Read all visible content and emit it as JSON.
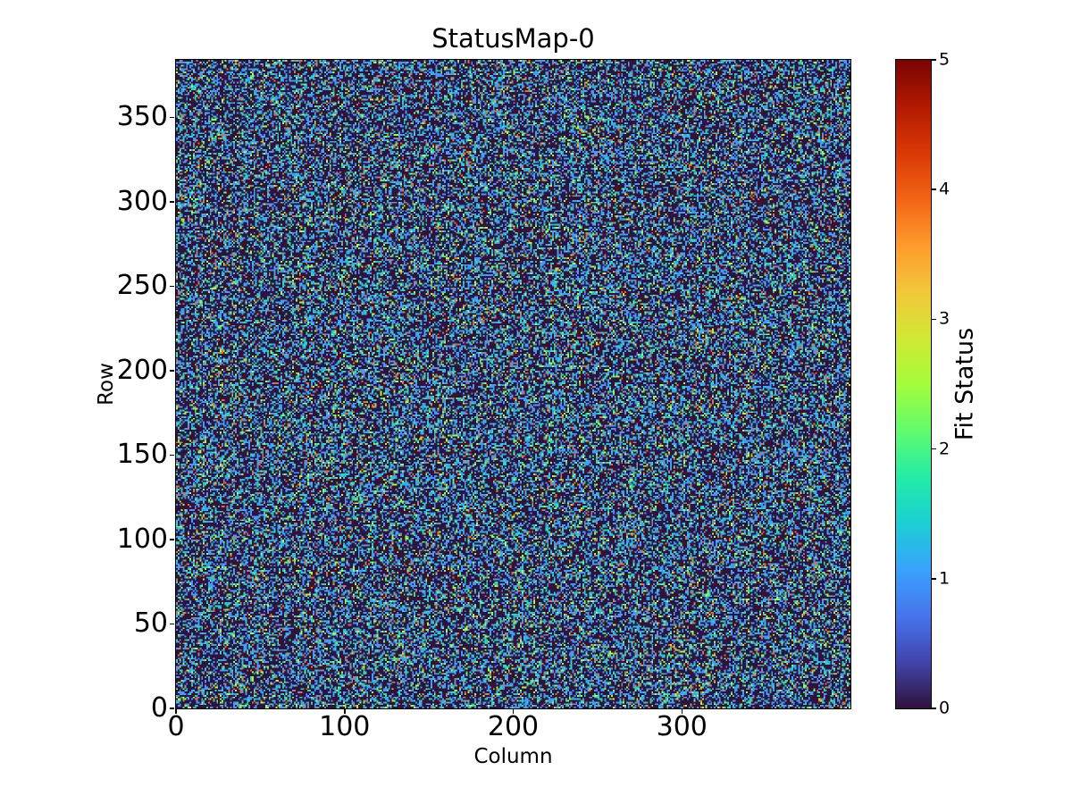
{
  "colors": {
    "background": "#ffffff",
    "text": "#000000",
    "spine": "#000000"
  },
  "chart_data": {
    "type": "heatmap",
    "title": "StatusMap-0",
    "xlabel": "Column",
    "ylabel": "Row",
    "x_ticks": [
      0,
      100,
      200,
      300
    ],
    "y_ticks": [
      0,
      50,
      100,
      150,
      200,
      250,
      300,
      350
    ],
    "xlim": [
      0,
      400
    ],
    "ylim": [
      0,
      384
    ],
    "grid": false,
    "cols": 400,
    "rows": 384,
    "colorbar": {
      "label": "Fit Status",
      "ticks": [
        0,
        1,
        2,
        3,
        4,
        5
      ],
      "vmin": 0,
      "vmax": 5,
      "colormap": "turbo",
      "position": "right",
      "gradient_stops": [
        "#30123b",
        "#4145ab",
        "#4675ed",
        "#39a2fc",
        "#1bcfd4",
        "#24eca6",
        "#61fc6c",
        "#a4fc3b",
        "#d1e834",
        "#f3c63a",
        "#fe9b2d",
        "#f36315",
        "#d93806",
        "#b11901",
        "#7a0403"
      ]
    },
    "cell_colors": {
      "0": "#30123b",
      "1": "#3e9cfe",
      "2": "#1ae4b6",
      "3": "#a4fc3c",
      "4": "#f76915",
      "5": "#7a0403"
    },
    "value_distribution": {
      "values": [
        0,
        1,
        2,
        3,
        4,
        5
      ],
      "probabilities": [
        0.565,
        0.25,
        0.09,
        0.055,
        0.025,
        0.015
      ]
    },
    "random_seed": 7
  }
}
